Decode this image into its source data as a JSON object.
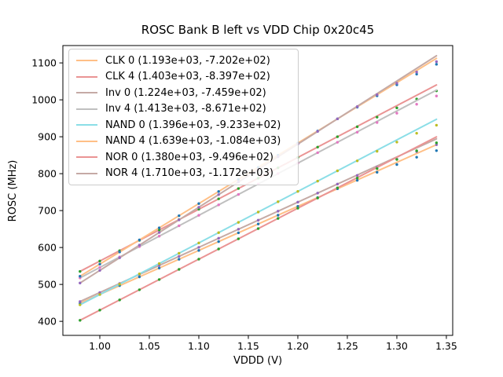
{
  "figure": {
    "background_color": "#ffffff",
    "frame_color": "#000000"
  },
  "chart_data": {
    "type": "scatter",
    "subtype": "measured points with linear fit lines",
    "title": "ROSC Bank B left vs VDD Chip 0x20c45",
    "xlabel": "VDDD (V)",
    "ylabel": "ROSC (MHz)",
    "xlim": [
      0.9627,
      1.3564
    ],
    "ylim": [
      362,
      1147
    ],
    "grid": false,
    "legend_position": "upper left",
    "xticks": {
      "values": [
        1.0,
        1.05,
        1.1,
        1.15,
        1.2,
        1.25,
        1.3,
        1.35
      ],
      "labels": [
        "1.00",
        "1.05",
        "1.10",
        "1.15",
        "1.20",
        "1.25",
        "1.30",
        "1.35"
      ]
    },
    "yticks": {
      "values": [
        400,
        500,
        600,
        700,
        800,
        900,
        1000,
        1100
      ],
      "labels": [
        "400",
        "500",
        "600",
        "700",
        "800",
        "900",
        "1000",
        "1100"
      ]
    },
    "x": [
      0.98,
      1.0,
      1.02,
      1.04,
      1.06,
      1.08,
      1.1,
      1.12,
      1.14,
      1.16,
      1.18,
      1.2,
      1.22,
      1.24,
      1.26,
      1.28,
      1.3,
      1.32,
      1.34
    ],
    "series": [
      {
        "name": "CLK 0",
        "legend_label": "CLK 0 (1.193e+03, -7.202e+02)",
        "fit_slope": 1193,
        "fit_intercept": -720.2,
        "line_color": "#ffbf86",
        "marker_color": "#1f77b4",
        "values": [
          448.9,
          472.8,
          496.7,
          520.5,
          544.4,
          568.2,
          592.1,
          616.0,
          639.8,
          663.7,
          687.5,
          711.4,
          735.3,
          759.1,
          782.0,
          803.8,
          824.7,
          844.6,
          862.4
        ]
      },
      {
        "name": "CLK 4",
        "legend_label": "CLK 4 (1.403e+03, -8.397e+02)",
        "fit_slope": 1403,
        "fit_intercept": -839.7,
        "line_color": "#ea9494",
        "marker_color": "#2ca02c",
        "values": [
          535.2,
          563.3,
          591.4,
          619.4,
          647.5,
          675.5,
          703.6,
          731.7,
          759.7,
          787.8,
          815.8,
          843.9,
          872.0,
          900.0,
          927.1,
          953.1,
          978.2,
          1002.3,
          1024.3
        ]
      },
      {
        "name": "Inv 0",
        "legend_label": "Inv 0 (1.224e+03, -7.459e+02)",
        "fit_slope": 1224,
        "fit_intercept": -745.9,
        "line_color": "#c5aaa5",
        "marker_color": "#9467bd",
        "values": [
          453.6,
          478.1,
          502.6,
          527.1,
          551.5,
          576.0,
          600.5,
          625.0,
          649.5,
          673.9,
          698.4,
          722.9,
          747.4,
          771.9,
          795.3,
          817.8,
          839.3,
          859.8,
          878.3
        ]
      },
      {
        "name": "Inv 4",
        "legend_label": "Inv 4 (1.413e+03, -8.671e+02)",
        "fit_slope": 1413,
        "fit_intercept": -867.1,
        "line_color": "#bfbfbf",
        "marker_color": "#e377c2",
        "values": [
          517.6,
          545.9,
          574.2,
          602.4,
          630.7,
          658.9,
          687.2,
          715.5,
          743.7,
          772.0,
          800.2,
          828.5,
          856.8,
          885.0,
          912.3,
          938.5,
          963.8,
          988.1,
          1010.3
        ]
      },
      {
        "name": "NAND 0",
        "legend_label": "NAND 0 (1.396e+03, -9.233e+02)",
        "fit_slope": 1396,
        "fit_intercept": -923.3,
        "line_color": "#8bdee7",
        "marker_color": "#bcbd22",
        "values": [
          444.8,
          472.7,
          500.6,
          528.5,
          556.5,
          584.4,
          612.3,
          640.2,
          668.1,
          696.1,
          724.0,
          751.9,
          779.8,
          807.7,
          834.7,
          860.6,
          885.5,
          909.4,
          931.3
        ]
      },
      {
        "name": "NAND 4",
        "legend_label": "NAND 4 (1.639e+03, -1.084e+03)",
        "fit_slope": 1639,
        "fit_intercept": -1084,
        "line_color": "#ffbf86",
        "marker_color": "#1f77b4",
        "values": [
          522.2,
          555.0,
          587.8,
          620.6,
          653.3,
          686.1,
          718.9,
          751.7,
          784.5,
          817.2,
          850.0,
          882.8,
          915.6,
          948.4,
          980.1,
          1010.9,
          1040.7,
          1069.5,
          1096.3
        ]
      },
      {
        "name": "NOR 0",
        "legend_label": "NOR 0 (1.380e+03, -9.496e+02)",
        "fit_slope": 1380,
        "fit_intercept": -949.6,
        "line_color": "#ea9494",
        "marker_color": "#2ca02c",
        "values": [
          402.8,
          430.4,
          458.0,
          485.6,
          513.2,
          540.8,
          568.4,
          596.0,
          623.6,
          651.2,
          678.8,
          706.4,
          734.0,
          761.6,
          788.2,
          813.8,
          838.4,
          862.0,
          883.6
        ]
      },
      {
        "name": "NOR 4",
        "legend_label": "NOR 4 (1.710e+03, -1.172e+03)",
        "fit_slope": 1710,
        "fit_intercept": -1172,
        "line_color": "#c5aaa5",
        "marker_color": "#9467bd",
        "values": [
          503.8,
          538.0,
          572.2,
          606.4,
          640.6,
          674.8,
          709.0,
          743.2,
          777.4,
          811.6,
          845.8,
          880.0,
          914.2,
          948.4,
          981.6,
          1013.8,
          1045.0,
          1075.2,
          1103.4
        ]
      }
    ]
  }
}
